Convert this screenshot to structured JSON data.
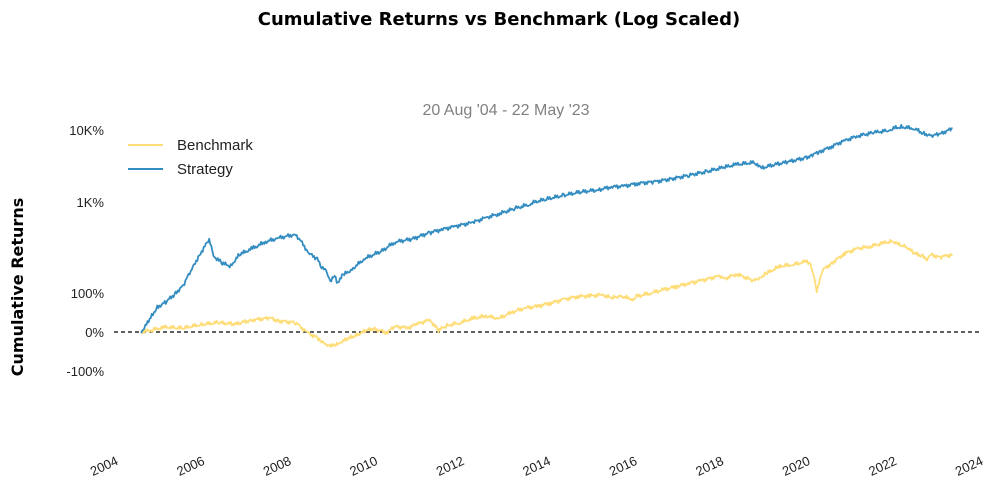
{
  "chart_data": {
    "type": "line",
    "title": "Cumulative Returns vs Benchmark (Log Scaled)",
    "subtitle": "20 Aug '04 - 22 May '23",
    "xlabel": "",
    "ylabel": "Cumulative Returns",
    "y_scale": "symlog",
    "x_ticks": [
      "2004",
      "2006",
      "2008",
      "2010",
      "2012",
      "2014",
      "2016",
      "2018",
      "2020",
      "2022",
      "2024"
    ],
    "y_ticks": [
      "10K%",
      "1K%",
      "100%",
      "0%",
      "-100%"
    ],
    "xlim": [
      2004,
      2024
    ],
    "baseline": 0,
    "baseline_style": "dashed",
    "grid": false,
    "legend_position": "top-left",
    "series": [
      {
        "name": "Benchmark",
        "color": "#fedd78",
        "x": [
          2004.63,
          2004.9,
          2005.2,
          2005.6,
          2006.0,
          2006.4,
          2006.8,
          2007.2,
          2007.6,
          2007.8,
          2008.2,
          2008.5,
          2008.7,
          2008.8,
          2008.95,
          2009.1,
          2009.2,
          2009.4,
          2009.6,
          2009.8,
          2010.0,
          2010.3,
          2010.5,
          2010.8,
          2011.0,
          2011.3,
          2011.5,
          2011.7,
          2012.0,
          2012.3,
          2012.6,
          2012.9,
          2013.2,
          2013.5,
          2013.8,
          2014.1,
          2014.4,
          2014.7,
          2015.0,
          2015.3,
          2015.5,
          2015.7,
          2016.0,
          2016.1,
          2016.4,
          2016.7,
          2017.0,
          2017.3,
          2017.6,
          2018.0,
          2018.1,
          2018.4,
          2018.8,
          2018.95,
          2019.1,
          2019.4,
          2019.7,
          2020.0,
          2020.1,
          2020.2,
          2020.25,
          2020.4,
          2020.6,
          2020.9,
          2021.2,
          2021.5,
          2021.8,
          2022.0,
          2022.1,
          2022.3,
          2022.5,
          2022.7,
          2022.8,
          2022.9,
          2023.1,
          2023.2,
          2023.39
        ],
        "values": [
          0,
          4,
          9,
          7,
          14,
          18,
          15,
          24,
          28,
          22,
          18,
          -4,
          -14,
          -26,
          -32,
          -37,
          -28,
          -18,
          -8,
          2,
          6,
          -1,
          10,
          8,
          15,
          24,
          3,
          12,
          18,
          27,
          33,
          27,
          42,
          53,
          58,
          68,
          78,
          88,
          90,
          94,
          82,
          90,
          78,
          88,
          100,
          112,
          126,
          140,
          154,
          175,
          160,
          185,
          150,
          170,
          190,
          230,
          240,
          260,
          250,
          150,
          110,
          210,
          250,
          320,
          360,
          380,
          410,
          430,
          400,
          380,
          320,
          300,
          280,
          310,
          290,
          300,
          310
        ]
      },
      {
        "name": "Strategy",
        "color": "#348dc1",
        "x": [
          2004.63,
          2004.8,
          2005.0,
          2005.2,
          2005.4,
          2005.6,
          2005.8,
          2006.0,
          2006.2,
          2006.3,
          2006.5,
          2006.7,
          2006.9,
          2007.2,
          2007.5,
          2007.8,
          2008.2,
          2008.5,
          2008.7,
          2008.8,
          2008.9,
          2009.0,
          2009.1,
          2009.15,
          2009.3,
          2009.5,
          2009.8,
          2010.2,
          2010.5,
          2010.9,
          2011.3,
          2011.6,
          2011.9,
          2012.3,
          2012.6,
          2012.9,
          2013.3,
          2013.6,
          2014.0,
          2014.4,
          2014.8,
          2015.2,
          2015.5,
          2015.8,
          2016.1,
          2016.5,
          2016.9,
          2017.3,
          2017.7,
          2018.1,
          2018.4,
          2018.8,
          2018.95,
          2019.2,
          2019.6,
          2020.0,
          2020.15,
          2020.3,
          2020.6,
          2020.9,
          2021.2,
          2021.6,
          2021.9,
          2022.0,
          2022.2,
          2022.5,
          2022.7,
          2022.9,
          2023.1,
          2023.39
        ],
        "values": [
          0,
          20,
          55,
          70,
          95,
          130,
          210,
          320,
          440,
          300,
          250,
          230,
          310,
          360,
          420,
          460,
          500,
          320,
          280,
          230,
          200,
          150,
          180,
          140,
          180,
          210,
          280,
          340,
          420,
          450,
          520,
          560,
          600,
          650,
          720,
          780,
          880,
          950,
          1100,
          1250,
          1400,
          1500,
          1650,
          1700,
          1850,
          1950,
          2150,
          2400,
          2700,
          3100,
          3400,
          3600,
          3000,
          3300,
          3700,
          4200,
          4600,
          5000,
          6000,
          7200,
          8300,
          9300,
          9800,
          10500,
          11000,
          10500,
          9000,
          8400,
          8800,
          10500
        ]
      }
    ]
  }
}
